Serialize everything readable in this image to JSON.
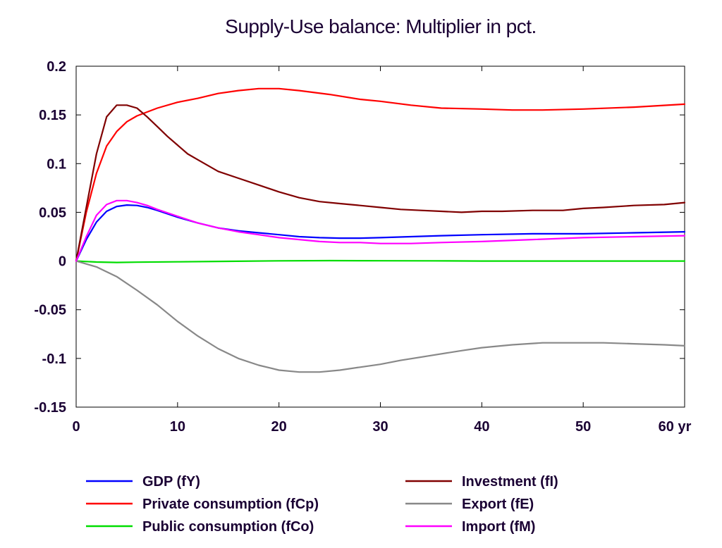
{
  "chart_data": {
    "type": "line",
    "title": "Supply-Use balance: Multiplier in pct.",
    "xlabel": "",
    "ylabel": "",
    "x_unit_label": "yr",
    "xlim": [
      0,
      60
    ],
    "ylim": [
      -0.15,
      0.2
    ],
    "x_ticks": [
      "0",
      "10",
      "20",
      "30",
      "40",
      "50",
      "60 yr"
    ],
    "x_tick_values": [
      0,
      10,
      20,
      30,
      40,
      50,
      60
    ],
    "y_ticks": [
      "0.2",
      "0.15",
      "0.1",
      "0.05",
      "0",
      "-0.05",
      "-0.1",
      "-0.15"
    ],
    "y_tick_values": [
      0.2,
      0.15,
      0.1,
      0.05,
      0,
      -0.05,
      -0.1,
      -0.15
    ],
    "grid": false,
    "legend_position": "bottom",
    "series": [
      {
        "name": "GDP (fY)",
        "color": "#0000ff",
        "x": [
          0,
          1,
          2,
          3,
          4,
          5,
          6,
          7,
          8,
          10,
          12,
          14,
          16,
          18,
          20,
          22,
          24,
          26,
          28,
          30,
          33,
          36,
          40,
          45,
          50,
          55,
          60
        ],
        "y": [
          0,
          0.022,
          0.04,
          0.051,
          0.056,
          0.0575,
          0.057,
          0.055,
          0.052,
          0.045,
          0.039,
          0.034,
          0.031,
          0.029,
          0.027,
          0.025,
          0.024,
          0.0235,
          0.0235,
          0.024,
          0.025,
          0.026,
          0.027,
          0.028,
          0.028,
          0.029,
          0.03
        ]
      },
      {
        "name": "Private consumption (fCp)",
        "color": "#ff0000",
        "x": [
          0,
          1,
          2,
          3,
          4,
          5,
          6,
          8,
          10,
          12,
          14,
          16,
          18,
          20,
          22,
          25,
          28,
          30,
          33,
          36,
          40,
          43,
          46,
          50,
          55,
          60
        ],
        "y": [
          0,
          0.05,
          0.09,
          0.118,
          0.133,
          0.143,
          0.149,
          0.157,
          0.163,
          0.167,
          0.172,
          0.175,
          0.177,
          0.177,
          0.175,
          0.171,
          0.166,
          0.164,
          0.16,
          0.157,
          0.156,
          0.155,
          0.155,
          0.156,
          0.158,
          0.161
        ]
      },
      {
        "name": "Public consumption (fCo)",
        "color": "#00dd00",
        "x": [
          0,
          2,
          4,
          6,
          10,
          15,
          20,
          25,
          30,
          35,
          40,
          50,
          60
        ],
        "y": [
          0,
          -0.001,
          -0.0015,
          -0.0012,
          -0.0008,
          -0.0003,
          0.0002,
          0.0004,
          0.0003,
          0.0002,
          0,
          0,
          0
        ]
      },
      {
        "name": "Investment (fI)",
        "color": "#800000",
        "x": [
          0,
          1,
          2,
          3,
          4,
          5,
          6,
          7,
          8,
          9,
          10,
          11,
          12,
          13,
          14,
          16,
          18,
          20,
          22,
          24,
          26,
          28,
          30,
          32,
          34,
          36,
          38,
          40,
          42,
          45,
          48,
          50,
          52,
          55,
          58,
          60
        ],
        "y": [
          0,
          0.055,
          0.11,
          0.148,
          0.16,
          0.16,
          0.157,
          0.148,
          0.138,
          0.128,
          0.119,
          0.11,
          0.104,
          0.098,
          0.092,
          0.085,
          0.078,
          0.071,
          0.065,
          0.061,
          0.059,
          0.057,
          0.055,
          0.053,
          0.052,
          0.051,
          0.05,
          0.051,
          0.051,
          0.052,
          0.052,
          0.054,
          0.055,
          0.057,
          0.058,
          0.06
        ]
      },
      {
        "name": "Export (fE)",
        "color": "#888888",
        "x": [
          0,
          2,
          4,
          6,
          8,
          10,
          12,
          14,
          16,
          18,
          20,
          22,
          24,
          26,
          28,
          30,
          32,
          35,
          38,
          40,
          43,
          46,
          49,
          52,
          55,
          58,
          60
        ],
        "y": [
          0,
          -0.006,
          -0.016,
          -0.03,
          -0.045,
          -0.062,
          -0.077,
          -0.09,
          -0.1,
          -0.107,
          -0.112,
          -0.114,
          -0.114,
          -0.112,
          -0.109,
          -0.106,
          -0.102,
          -0.097,
          -0.092,
          -0.089,
          -0.086,
          -0.084,
          -0.084,
          -0.084,
          -0.085,
          -0.086,
          -0.087
        ]
      },
      {
        "name": "Import (fM)",
        "color": "#ff00ff",
        "x": [
          0,
          1,
          2,
          3,
          4,
          5,
          6,
          7,
          8,
          10,
          12,
          14,
          16,
          18,
          20,
          22,
          24,
          26,
          28,
          30,
          33,
          36,
          40,
          45,
          50,
          55,
          60
        ],
        "y": [
          0,
          0.025,
          0.047,
          0.058,
          0.062,
          0.062,
          0.06,
          0.057,
          0.053,
          0.046,
          0.039,
          0.034,
          0.03,
          0.027,
          0.024,
          0.022,
          0.02,
          0.019,
          0.019,
          0.018,
          0.018,
          0.019,
          0.02,
          0.022,
          0.024,
          0.025,
          0.026
        ]
      }
    ]
  }
}
